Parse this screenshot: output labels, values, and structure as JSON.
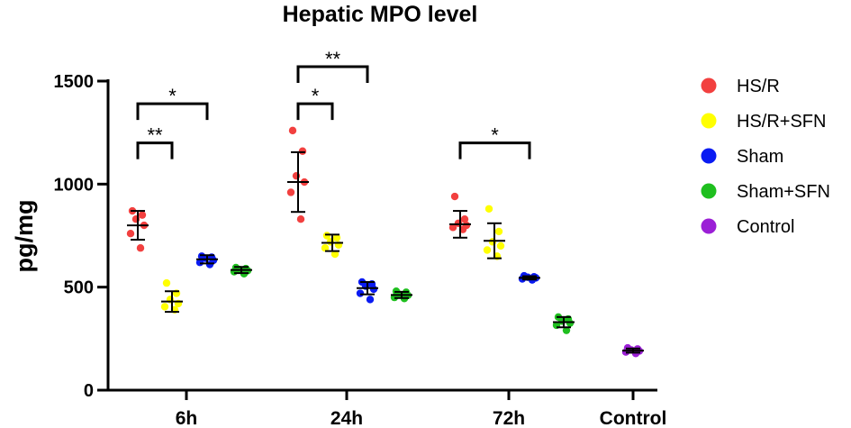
{
  "chart_data": {
    "type": "scatter",
    "title": "Hepatic MPO level",
    "xlabel": "",
    "ylabel": "pg/mg",
    "ylim": [
      0,
      1500
    ],
    "yticks": [
      0,
      500,
      1000,
      1500
    ],
    "categories": [
      "6h",
      "24h",
      "72h",
      "Control"
    ],
    "legend_position": "right",
    "series": [
      {
        "name": "HS/R",
        "color": "#f2403f",
        "group": "6h",
        "mean": 800,
        "sd": 70,
        "points": [
          870,
          850,
          830,
          800,
          760,
          690
        ]
      },
      {
        "name": "HS/R+SFN",
        "color": "#ffff00",
        "group": "6h",
        "mean": 430,
        "sd": 50,
        "points": [
          520,
          470,
          440,
          420,
          405,
          390
        ]
      },
      {
        "name": "Sham",
        "color": "#0a1bf2",
        "group": "6h",
        "mean": 635,
        "sd": 20,
        "points": [
          650,
          645,
          640,
          630,
          620,
          610
        ]
      },
      {
        "name": "Sham+SFN",
        "color": "#1fbf1f",
        "group": "6h",
        "mean": 583,
        "sd": 15,
        "points": [
          595,
          590,
          585,
          580,
          575,
          565
        ]
      },
      {
        "name": "HS/R",
        "color": "#f2403f",
        "group": "24h",
        "mean": 1010,
        "sd": 145,
        "points": [
          1260,
          1160,
          1040,
          1010,
          960,
          830
        ]
      },
      {
        "name": "HS/R+SFN",
        "color": "#ffff00",
        "group": "24h",
        "mean": 715,
        "sd": 40,
        "points": [
          750,
          740,
          720,
          705,
          690,
          660
        ]
      },
      {
        "name": "Sham",
        "color": "#0a1bf2",
        "group": "24h",
        "mean": 495,
        "sd": 30,
        "points": [
          525,
          515,
          505,
          490,
          470,
          440
        ]
      },
      {
        "name": "Sham+SFN",
        "color": "#1fbf1f",
        "group": "24h",
        "mean": 462,
        "sd": 15,
        "points": [
          480,
          475,
          465,
          460,
          450,
          445
        ]
      },
      {
        "name": "HS/R",
        "color": "#f2403f",
        "group": "72h",
        "mean": 805,
        "sd": 65,
        "points": [
          940,
          830,
          810,
          800,
          790,
          780
        ]
      },
      {
        "name": "HS/R+SFN",
        "color": "#ffff00",
        "group": "72h",
        "mean": 725,
        "sd": 85,
        "points": [
          880,
          770,
          720,
          700,
          680,
          650
        ]
      },
      {
        "name": "Sham",
        "color": "#0a1bf2",
        "group": "72h",
        "mean": 545,
        "sd": 8,
        "points": [
          555,
          550,
          548,
          545,
          540,
          535
        ]
      },
      {
        "name": "Sham+SFN",
        "color": "#1fbf1f",
        "group": "72h",
        "mean": 330,
        "sd": 25,
        "points": [
          355,
          345,
          335,
          325,
          315,
          290
        ]
      },
      {
        "name": "Control",
        "color": "#9b1fd6",
        "group": "Control",
        "mean": 192,
        "sd": 10,
        "points": [
          205,
          200,
          195,
          190,
          185,
          178
        ]
      }
    ],
    "significance": [
      {
        "label": "*",
        "group": "6h",
        "from": 0,
        "to": 2,
        "y": 1390
      },
      {
        "label": "**",
        "group": "6h",
        "from": 0,
        "to": 1,
        "y": 1200
      },
      {
        "label": "**",
        "group": "24h",
        "from": 0,
        "to": 2,
        "y": 1570
      },
      {
        "label": "*",
        "group": "24h",
        "from": 0,
        "to": 1,
        "y": 1390
      },
      {
        "label": "*",
        "group": "72h",
        "from": 0,
        "to": 2,
        "y": 1200
      }
    ]
  }
}
